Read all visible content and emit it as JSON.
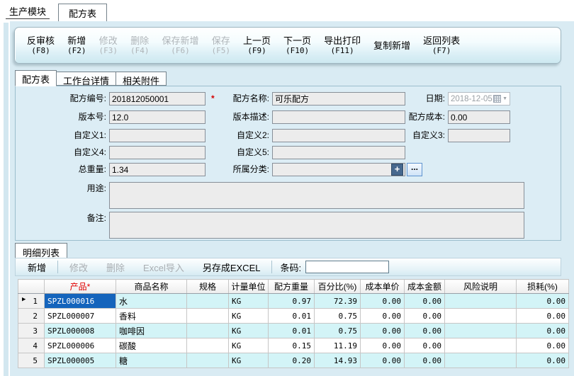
{
  "window": {
    "module_tab": "生产模块",
    "active_tab": "配方表"
  },
  "toolbar": {
    "buttons": [
      {
        "label": "反审核",
        "key": "(F8)",
        "enabled": true
      },
      {
        "label": "新增",
        "key": "(F2)",
        "enabled": true
      },
      {
        "label": "修改",
        "key": "(F3)",
        "enabled": false
      },
      {
        "label": "删除",
        "key": "(F4)",
        "enabled": false
      },
      {
        "label": "保存新增",
        "key": "(F6)",
        "enabled": false
      },
      {
        "label": "保存",
        "key": "(F5)",
        "enabled": false
      },
      {
        "label": "上一页",
        "key": "(F9)",
        "enabled": true
      },
      {
        "label": "下一页",
        "key": "(F10)",
        "enabled": true
      },
      {
        "label": "导出打印",
        "key": "(F11)",
        "enabled": true
      },
      {
        "label": "复制新增",
        "key": "",
        "enabled": true
      },
      {
        "label": "返回列表",
        "key": "(F7)",
        "enabled": true
      }
    ]
  },
  "form_tabs": {
    "items": [
      {
        "label": "配方表",
        "active": true
      },
      {
        "label": "工作台详情",
        "active": false
      },
      {
        "label": "相关附件",
        "active": false
      }
    ]
  },
  "form": {
    "recipe_no_label": "配方编号:",
    "recipe_no": "201812050001",
    "required_mark": "*",
    "recipe_name_label": "配方名称:",
    "recipe_name": "可乐配方",
    "date_label": "日期:",
    "date": "2018-12-05",
    "date_dropdown": "▼",
    "version_label": "版本号:",
    "version": "12.0",
    "version_desc_label": "版本描述:",
    "version_desc": "",
    "cost_label": "配方成本:",
    "cost": "0.00",
    "custom1_label": "自定义1:",
    "custom1": "",
    "custom2_label": "自定义2:",
    "custom2": "",
    "custom3_label": "自定义3:",
    "custom3": "",
    "custom4_label": "自定义4:",
    "custom4": "",
    "custom5_label": "自定义5:",
    "custom5": "",
    "total_weight_label": "总重量:",
    "total_weight": "1.34",
    "category_label": "所属分类:",
    "category": "",
    "plus_button": "+",
    "more_button": "...",
    "usage_label": "用途:",
    "usage": "",
    "remark_label": "备注:",
    "remark": ""
  },
  "detail": {
    "section_tab": "明细列表",
    "buttons": [
      {
        "label": "新增",
        "enabled": true,
        "sep_after": true
      },
      {
        "label": "修改",
        "enabled": false,
        "sep_after": false
      },
      {
        "label": "删除",
        "enabled": false,
        "sep_after": false
      },
      {
        "label": "Excel导入",
        "enabled": false,
        "sep_after": false
      },
      {
        "label": "另存成EXCEL",
        "enabled": true,
        "sep_after": true
      }
    ],
    "barcode_label": "条码:",
    "barcode_value": ""
  },
  "table": {
    "columns": [
      "",
      "产品*",
      "商品名称",
      "规格",
      "计量单位",
      "配方重量",
      "百分比(%)",
      "成本单价",
      "成本金额",
      "风险说明",
      "损耗(%)"
    ],
    "rows": [
      {
        "n": "1",
        "selected": true,
        "cells": [
          "SPZL000016",
          "水",
          "",
          "KG",
          "0.97",
          "72.39",
          "0.00",
          "0.00",
          "",
          "0.00"
        ]
      },
      {
        "n": "2",
        "selected": false,
        "cells": [
          "SPZL000007",
          "香料",
          "",
          "KG",
          "0.01",
          "0.75",
          "0.00",
          "0.00",
          "",
          "0.00"
        ]
      },
      {
        "n": "3",
        "selected": false,
        "cells": [
          "SPZL000008",
          "咖啡因",
          "",
          "KG",
          "0.01",
          "0.75",
          "0.00",
          "0.00",
          "",
          "0.00"
        ]
      },
      {
        "n": "4",
        "selected": false,
        "cells": [
          "SPZL000006",
          "碳酸",
          "",
          "KG",
          "0.15",
          "11.19",
          "0.00",
          "0.00",
          "",
          "0.00"
        ]
      },
      {
        "n": "5",
        "selected": false,
        "cells": [
          "SPZL000005",
          "糖",
          "",
          "KG",
          "0.20",
          "14.93",
          "0.00",
          "0.00",
          "",
          "0.00"
        ]
      }
    ]
  },
  "colors": {
    "selection_blue": "#1464bc",
    "row_cyan": "#d3f4f7",
    "panel_blue": "#dcedf5",
    "required_red": "#e00000"
  }
}
